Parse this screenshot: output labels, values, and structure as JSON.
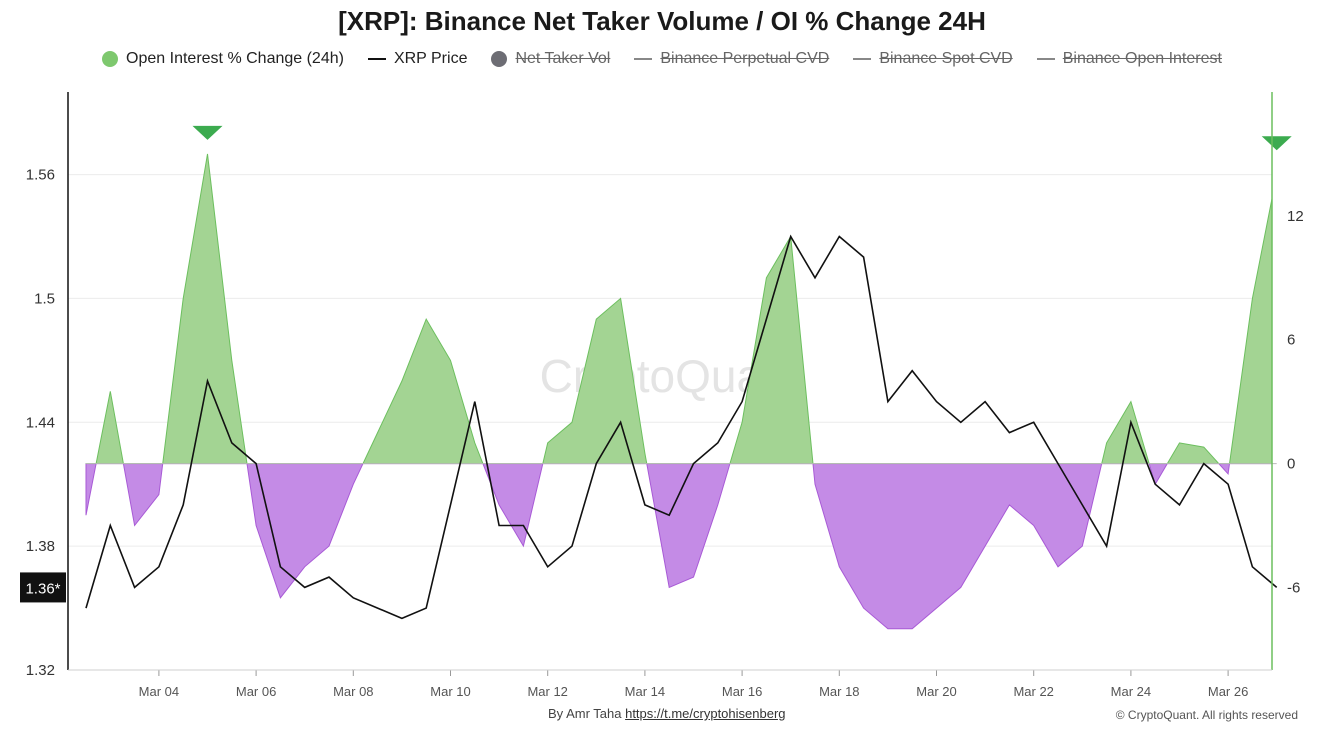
{
  "title": "[XRP]: Binance Net Taker Volume / OI % Change 24H",
  "legend": [
    {
      "label": "Open Interest % Change (24h)",
      "kind": "dot",
      "color": "#7ec86e",
      "active": true
    },
    {
      "label": "XRP Price",
      "kind": "line",
      "color": "#111111",
      "active": true
    },
    {
      "label": "Net Taker Vol",
      "kind": "dot",
      "color": "#6d6d74",
      "active": false
    },
    {
      "label": "Binance Perpetual CVD",
      "kind": "line",
      "color": "#888888",
      "active": false
    },
    {
      "label": "Binance Spot CVD",
      "kind": "line",
      "color": "#888888",
      "active": false
    },
    {
      "label": "Binance Open Interest",
      "kind": "line",
      "color": "#888888",
      "active": false
    }
  ],
  "watermark": "CryptoQuant",
  "footer": {
    "credit_prefix": "By Amr Taha",
    "credit_link": "https://t.me/cryptohisenberg",
    "copyright": "© CryptoQuant. All rights reserved"
  },
  "chart_data": {
    "type": "line",
    "x": [
      "Mar 02 12:00",
      "Mar 03",
      "Mar 03 12:00",
      "Mar 04",
      "Mar 04 12:00",
      "Mar 05",
      "Mar 05 12:00",
      "Mar 06",
      "Mar 06 12:00",
      "Mar 07",
      "Mar 07 12:00",
      "Mar 08",
      "Mar 08 12:00",
      "Mar 09",
      "Mar 09 12:00",
      "Mar 10",
      "Mar 10 12:00",
      "Mar 11",
      "Mar 11 12:00",
      "Mar 12",
      "Mar 12 12:00",
      "Mar 13",
      "Mar 13 12:00",
      "Mar 14",
      "Mar 14 12:00",
      "Mar 15",
      "Mar 15 12:00",
      "Mar 16",
      "Mar 16 12:00",
      "Mar 17",
      "Mar 17 12:00",
      "Mar 18",
      "Mar 18 12:00",
      "Mar 19",
      "Mar 19 12:00",
      "Mar 20",
      "Mar 20 12:00",
      "Mar 21",
      "Mar 21 12:00",
      "Mar 22",
      "Mar 22 12:00",
      "Mar 23",
      "Mar 23 12:00",
      "Mar 24",
      "Mar 24 12:00",
      "Mar 25",
      "Mar 25 12:00",
      "Mar 26",
      "Mar 26 12:00",
      "Mar 27"
    ],
    "xticks": [
      "Mar 04",
      "Mar 06",
      "Mar 08",
      "Mar 10",
      "Mar 12",
      "Mar 14",
      "Mar 16",
      "Mar 18",
      "Mar 20",
      "Mar 22",
      "Mar 24",
      "Mar 26"
    ],
    "series": [
      {
        "name": "XRP Price",
        "axis": "left",
        "color": "#111111",
        "values": [
          1.35,
          1.39,
          1.36,
          1.37,
          1.4,
          1.46,
          1.43,
          1.42,
          1.37,
          1.36,
          1.365,
          1.355,
          1.35,
          1.345,
          1.35,
          1.4,
          1.45,
          1.39,
          1.39,
          1.37,
          1.38,
          1.42,
          1.44,
          1.4,
          1.395,
          1.42,
          1.43,
          1.45,
          1.49,
          1.53,
          1.51,
          1.53,
          1.52,
          1.45,
          1.465,
          1.45,
          1.44,
          1.45,
          1.435,
          1.44,
          1.42,
          1.4,
          1.38,
          1.44,
          1.41,
          1.4,
          1.42,
          1.41,
          1.37,
          1.36
        ]
      },
      {
        "name": "Open Interest % Change (24h)",
        "axis": "right",
        "color": "#7ec86e",
        "negative_color": "#b86de0",
        "values": [
          -2.5,
          3.5,
          -3,
          -1.5,
          8,
          15,
          5,
          -3,
          -6.5,
          -5,
          -4,
          -1,
          1.5,
          4,
          7,
          5,
          1,
          -2,
          -4,
          1,
          2,
          7,
          8,
          0.5,
          -6,
          -5.5,
          -2,
          2,
          9,
          11,
          -1,
          -5,
          -7,
          -8,
          -8,
          -7,
          -6,
          -4,
          -2,
          -3,
          -5,
          -4,
          1,
          3,
          -1,
          1,
          0.8,
          -0.5,
          8,
          14
        ]
      }
    ],
    "y_left": {
      "min": 1.32,
      "max": 1.6,
      "ticks": [
        1.32,
        1.38,
        1.44,
        1.5,
        1.56
      ]
    },
    "y_right": {
      "min": -10,
      "max": 18,
      "ticks": [
        -6,
        0,
        6,
        12
      ]
    },
    "current_price_label": "1.36*",
    "markers": [
      {
        "x": "Mar 05",
        "y": 15,
        "shape": "triangle-down",
        "color": "#3cab4f"
      },
      {
        "x": "Mar 27",
        "y": 14.5,
        "shape": "triangle-down",
        "color": "#3cab4f"
      }
    ]
  }
}
